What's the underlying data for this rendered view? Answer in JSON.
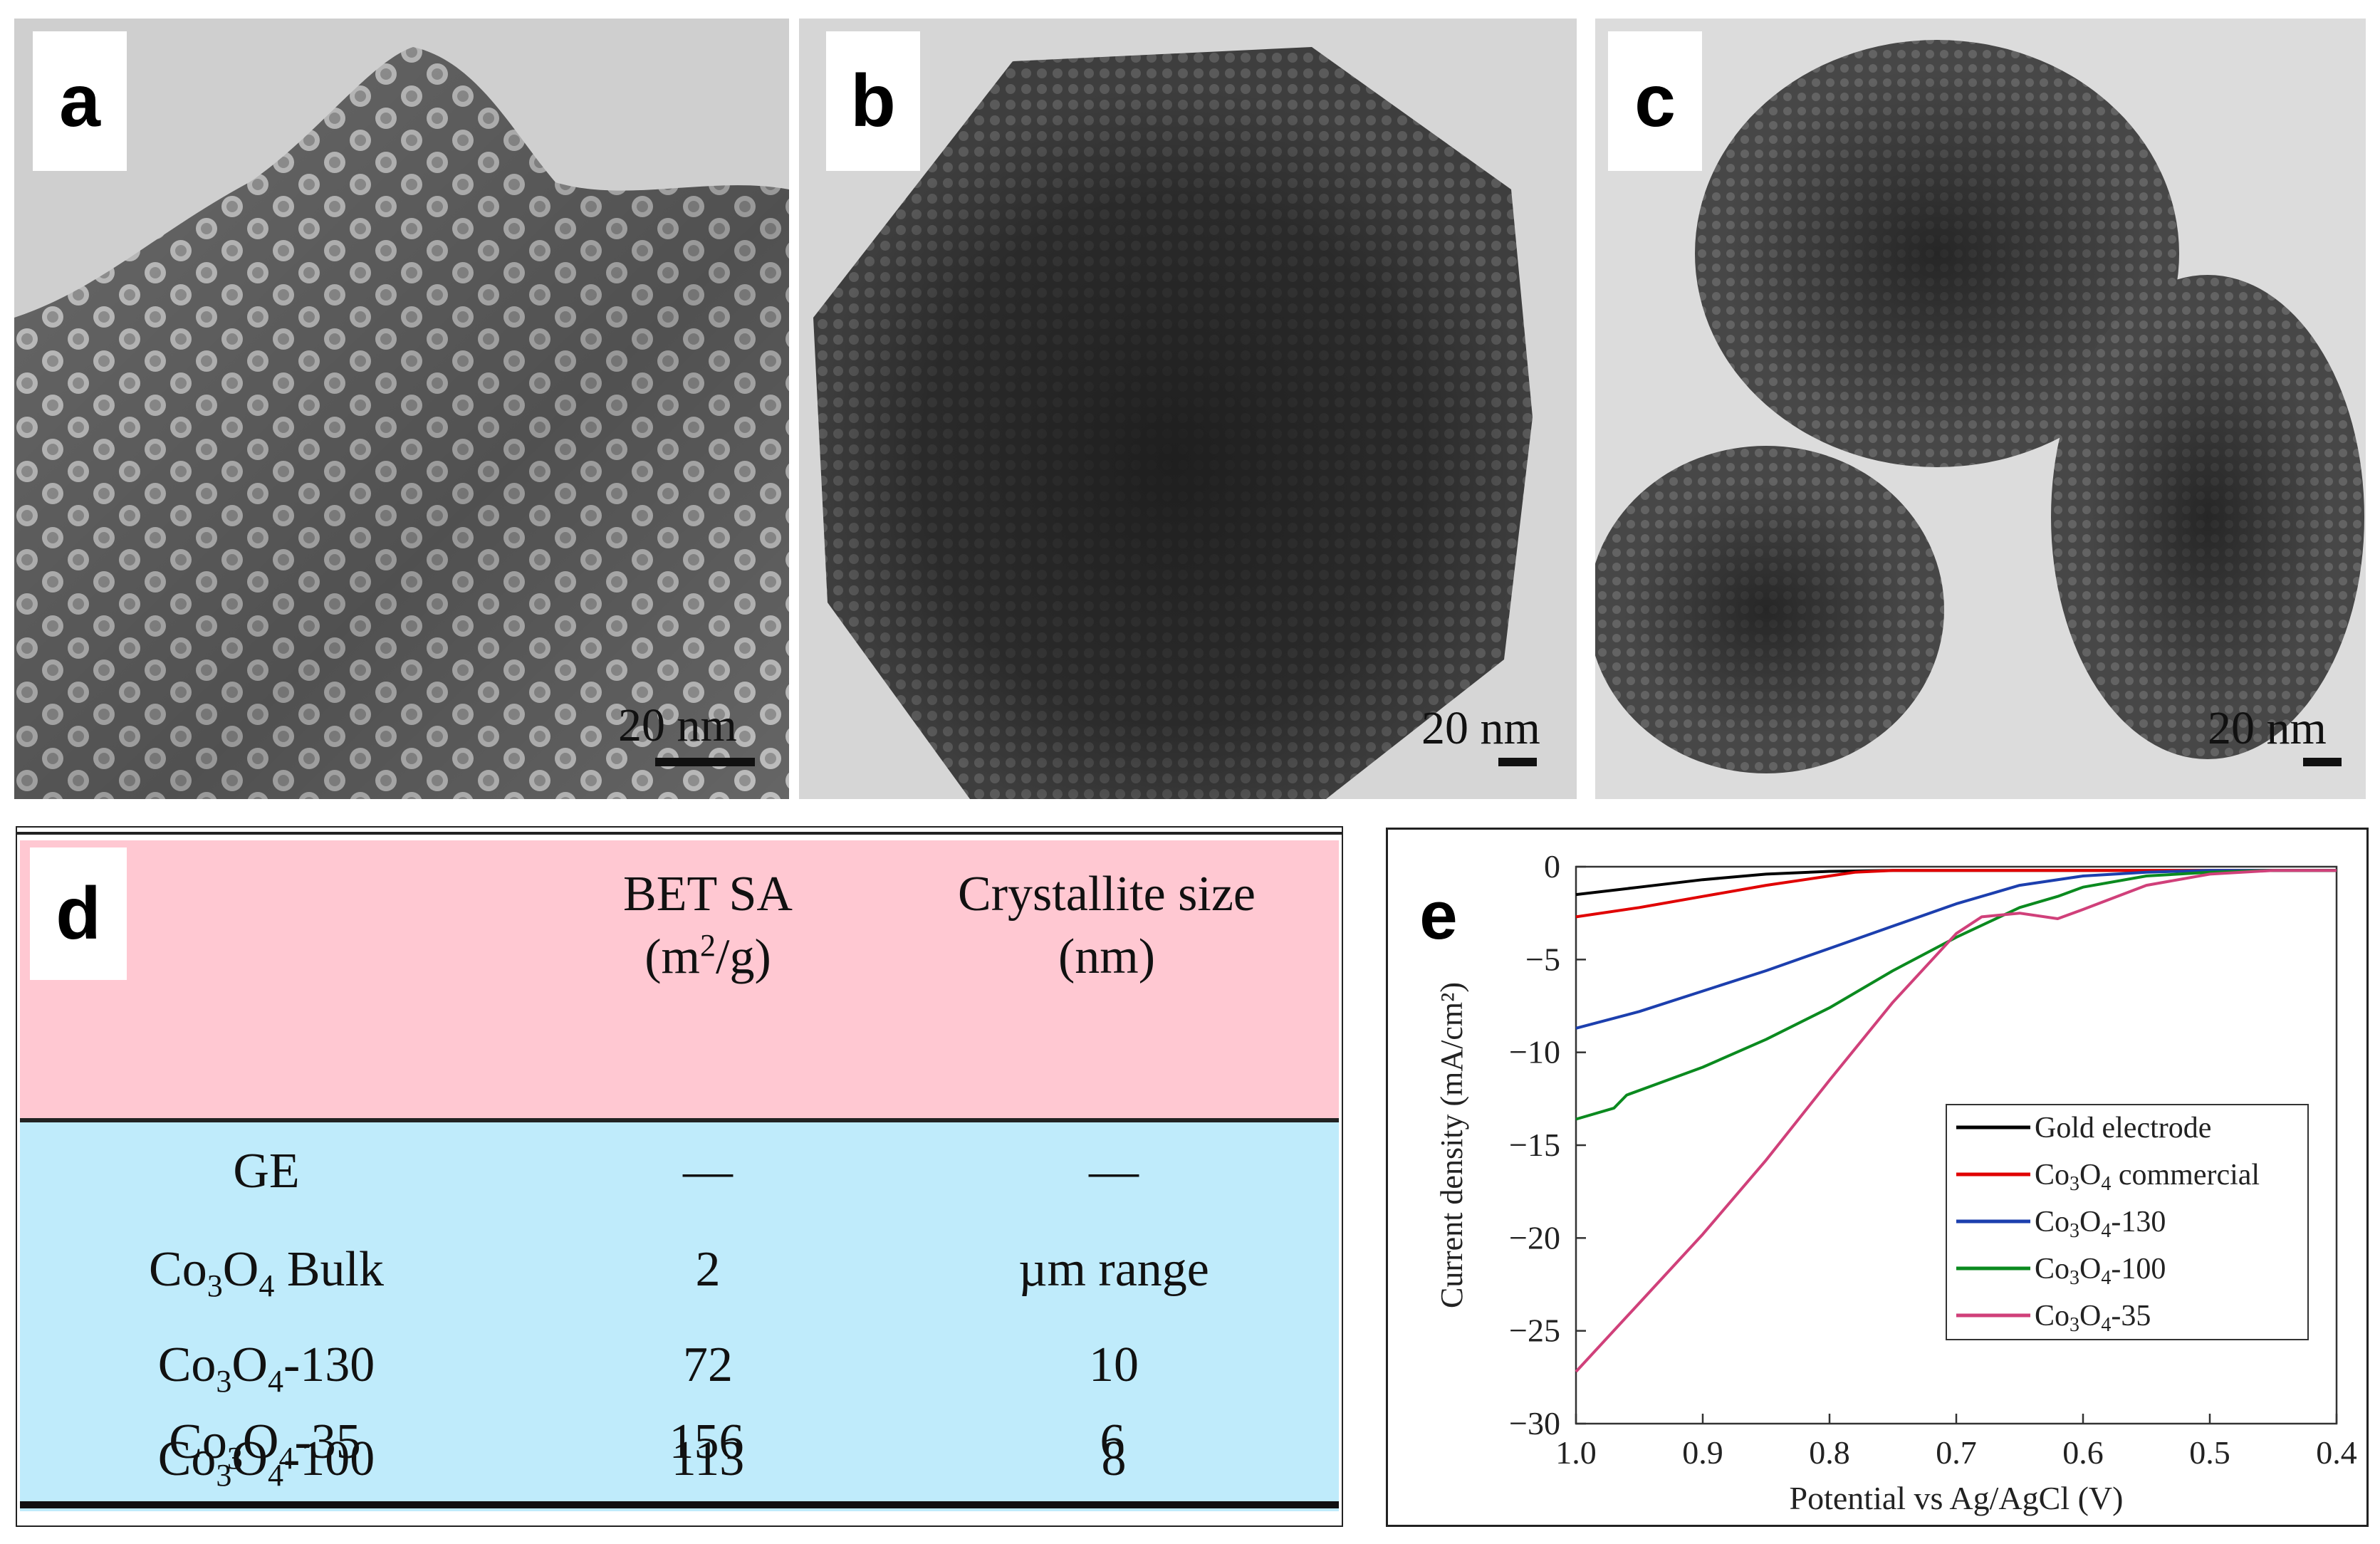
{
  "panels": {
    "a": {
      "label": "a",
      "scale_label": "20 nm"
    },
    "b": {
      "label": "b",
      "scale_label": "20 nm"
    },
    "c": {
      "label": "c",
      "scale_label": "20 nm"
    },
    "d": {
      "label": "d"
    },
    "e": {
      "label": "e"
    }
  },
  "table": {
    "header": {
      "bet_line1": "BET SA",
      "bet_line2_pre": "(m",
      "bet_line2_sup": "2",
      "bet_line2_post": "/g)",
      "cryst_line1": "Crystallite size",
      "cryst_line2": "(nm)"
    },
    "rows": [
      {
        "sample": "GE",
        "bet": "—",
        "size": "—"
      },
      {
        "sample_base": "Co",
        "sample_sub1": "3",
        "sample_mid": "O",
        "sample_sub2": "4",
        "sample_suffix": " Bulk",
        "bet": "2",
        "size": "µm range"
      },
      {
        "sample_base": "Co",
        "sample_sub1": "3",
        "sample_mid": "O",
        "sample_sub2": "4",
        "sample_suffix": "-130",
        "bet": "72",
        "size": "10"
      },
      {
        "sample_base": "Co",
        "sample_sub1": "3",
        "sample_mid": "O",
        "sample_sub2": "4",
        "sample_suffix": "-100",
        "bet": "113",
        "size": "8"
      },
      {
        "sample_base": "Co",
        "sample_sub1": "3",
        "sample_mid": "O",
        "sample_sub2": "4",
        "sample_suffix": "-35",
        "bet": "156",
        "size": "6"
      }
    ]
  },
  "chart_data": {
    "type": "line",
    "title": "",
    "xlabel": "Potential vs Ag/AgCl (V)",
    "ylabel": "Current density (mA/cm²)",
    "xlim": [
      1.0,
      0.4
    ],
    "ylim": [
      -30,
      0
    ],
    "xticks": [
      "1.0",
      "0.9",
      "0.8",
      "0.7",
      "0.6",
      "0.5",
      "0.4"
    ],
    "yticks": [
      "0",
      "−5",
      "−10",
      "−15",
      "−20",
      "−25",
      "−30"
    ],
    "legend_position": "center-right",
    "series": [
      {
        "name": "Gold electrode",
        "legend_main": "Gold electrode",
        "color": "#000000",
        "x": [
          1.0,
          0.95,
          0.9,
          0.85,
          0.8,
          0.75,
          0.7,
          0.6,
          0.5,
          0.4
        ],
        "y": [
          -1.5,
          -1.1,
          -0.7,
          -0.4,
          -0.25,
          -0.2,
          -0.2,
          -0.2,
          -0.2,
          -0.2
        ]
      },
      {
        "name": "Co3O4 commercial",
        "legend_main": "Co",
        "legend_sub1": "3",
        "legend_mid": "O",
        "legend_sub2": "4",
        "legend_suffix": " commercial",
        "color": "#e00000",
        "x": [
          1.0,
          0.95,
          0.9,
          0.85,
          0.8,
          0.78,
          0.75,
          0.7,
          0.6,
          0.5,
          0.4
        ],
        "y": [
          -2.7,
          -2.2,
          -1.6,
          -1.0,
          -0.5,
          -0.3,
          -0.2,
          -0.2,
          -0.2,
          -0.2,
          -0.2
        ]
      },
      {
        "name": "Co3O4-130",
        "legend_main": "Co",
        "legend_sub1": "3",
        "legend_mid": "O",
        "legend_sub2": "4",
        "legend_suffix": "-130",
        "color": "#1c3fae",
        "x": [
          1.0,
          0.95,
          0.9,
          0.85,
          0.8,
          0.75,
          0.7,
          0.65,
          0.6,
          0.55,
          0.5,
          0.45,
          0.4
        ],
        "y": [
          -8.7,
          -7.8,
          -6.7,
          -5.6,
          -4.4,
          -3.2,
          -2.0,
          -1.0,
          -0.5,
          -0.3,
          -0.2,
          -0.2,
          -0.2
        ]
      },
      {
        "name": "Co3O4-100",
        "legend_main": "Co",
        "legend_sub1": "3",
        "legend_mid": "O",
        "legend_sub2": "4",
        "legend_suffix": "-100",
        "color": "#0b8a1f",
        "x": [
          1.0,
          0.97,
          0.96,
          0.9,
          0.85,
          0.8,
          0.75,
          0.7,
          0.65,
          0.62,
          0.6,
          0.55,
          0.5,
          0.45,
          0.4
        ],
        "y": [
          -13.6,
          -13.0,
          -12.3,
          -10.8,
          -9.3,
          -7.6,
          -5.6,
          -3.8,
          -2.2,
          -1.6,
          -1.1,
          -0.5,
          -0.3,
          -0.2,
          -0.2
        ]
      },
      {
        "name": "Co3O4-35",
        "legend_main": "Co",
        "legend_sub1": "3",
        "legend_mid": "O",
        "legend_sub2": "4",
        "legend_suffix": "-35",
        "color": "#d0407a",
        "x": [
          1.0,
          0.95,
          0.9,
          0.85,
          0.8,
          0.75,
          0.7,
          0.68,
          0.65,
          0.62,
          0.6,
          0.55,
          0.5,
          0.45,
          0.4
        ],
        "y": [
          -27.2,
          -23.5,
          -19.8,
          -15.8,
          -11.5,
          -7.3,
          -3.6,
          -2.7,
          -2.5,
          -2.8,
          -2.3,
          -1.0,
          -0.4,
          -0.2,
          -0.2
        ]
      }
    ]
  }
}
